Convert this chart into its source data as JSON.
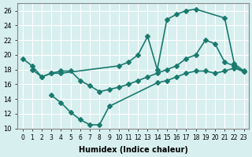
{
  "line1_x": [
    0,
    1,
    2,
    3,
    4,
    10,
    11,
    12,
    13,
    14,
    15,
    16,
    17,
    18,
    21,
    22,
    23
  ],
  "line1_y": [
    19.5,
    18.5,
    17.0,
    17.5,
    17.5,
    18.5,
    19.0,
    20.0,
    22.5,
    18.0,
    24.8,
    25.5,
    26.0,
    26.2,
    25.0,
    18.8,
    17.8
  ],
  "line2_x": [
    1,
    2,
    3,
    4,
    5,
    6,
    7,
    8,
    9,
    10,
    11,
    12,
    13,
    14,
    15,
    16,
    17,
    18,
    19,
    20,
    21,
    22,
    23
  ],
  "line2_y": [
    18.0,
    17.0,
    17.5,
    17.8,
    17.8,
    16.5,
    15.8,
    15.0,
    15.3,
    15.6,
    16.0,
    16.5,
    17.0,
    17.5,
    18.0,
    18.5,
    19.5,
    20.0,
    22.0,
    21.5,
    19.0,
    18.5,
    17.7
  ],
  "line3_x": [
    3,
    4,
    5,
    6,
    7,
    8,
    9,
    14,
    15,
    16,
    17,
    18,
    19,
    20,
    21,
    22,
    23
  ],
  "line3_y": [
    14.5,
    13.5,
    12.2,
    11.2,
    10.5,
    10.5,
    13.0,
    16.2,
    16.5,
    17.0,
    17.5,
    17.8,
    17.8,
    17.5,
    17.8,
    18.2,
    17.7
  ],
  "line_color": "#1a7a6e",
  "bg_color": "#d8efef",
  "grid_color": "#ffffff",
  "xlabel": "Humidex (Indice chaleur)",
  "ylabel": "",
  "xlim": [
    -0.5,
    23.5
  ],
  "ylim": [
    10,
    27
  ],
  "yticks": [
    10,
    12,
    14,
    16,
    18,
    20,
    22,
    24,
    26
  ],
  "xticks": [
    0,
    1,
    2,
    3,
    4,
    5,
    6,
    7,
    8,
    9,
    10,
    11,
    12,
    13,
    14,
    15,
    16,
    17,
    18,
    19,
    20,
    21,
    22,
    23
  ],
  "xtick_labels": [
    "0",
    "1",
    "2",
    "3",
    "4",
    "5",
    "6",
    "7",
    "8",
    "9",
    "10",
    "11",
    "12",
    "13",
    "14",
    "15",
    "16",
    "17",
    "18",
    "19",
    "20",
    "21",
    "22",
    "23"
  ],
  "marker": "D",
  "marker_size": 3,
  "line_width": 1.2
}
